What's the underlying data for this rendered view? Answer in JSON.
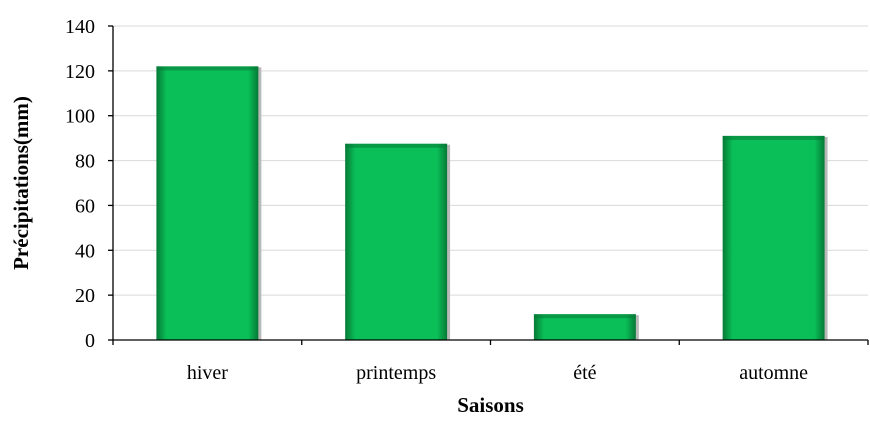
{
  "chart_data": {
    "type": "bar",
    "categories": [
      "hiver",
      "printemps",
      "été",
      "automne"
    ],
    "values": [
      122,
      87.5,
      11.5,
      91
    ],
    "xlabel": "Saisons",
    "ylabel": "Précipitations(mm)",
    "ylim": [
      0,
      140
    ],
    "yticks": [
      0,
      20,
      40,
      60,
      80,
      100,
      120,
      140
    ],
    "ytick_labels": [
      "0",
      "20",
      "40",
      "60",
      "80",
      "100",
      "120",
      "140"
    ],
    "grid": true,
    "legend": "none",
    "colors": {
      "bar_fill": "#0abf58",
      "bar_edge": "#067a36",
      "bar_shadow": "#b8b8b8",
      "grid": "#d9d9d9",
      "axis": "#000000"
    }
  }
}
